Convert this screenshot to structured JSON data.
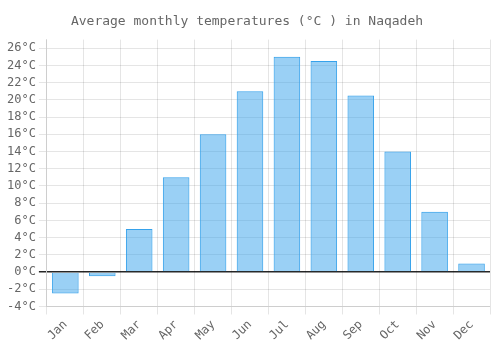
{
  "chart_data": {
    "type": "bar",
    "title": "Average monthly temperatures (°C ) in Naqadeh",
    "categories": [
      "Jan",
      "Feb",
      "Mar",
      "Apr",
      "May",
      "Jun",
      "Jul",
      "Aug",
      "Sep",
      "Oct",
      "Nov",
      "Dec"
    ],
    "values": [
      -2.5,
      -0.5,
      5.0,
      11.0,
      16.0,
      21.0,
      25.0,
      24.5,
      20.5,
      14.0,
      7.0,
      1.0
    ],
    "ylim": [
      -4,
      27
    ],
    "yticks": [
      {
        "value": -4,
        "label": "-4°C"
      },
      {
        "value": -2,
        "label": "-2°C"
      },
      {
        "value": 0,
        "label": "0°C"
      },
      {
        "value": 2,
        "label": "2°C"
      },
      {
        "value": 4,
        "label": "4°C"
      },
      {
        "value": 6,
        "label": "6°C"
      },
      {
        "value": 8,
        "label": "8°C"
      },
      {
        "value": 10,
        "label": "10°C"
      },
      {
        "value": 12,
        "label": "12°C"
      },
      {
        "value": 14,
        "label": "14°C"
      },
      {
        "value": 16,
        "label": "16°C"
      },
      {
        "value": 18,
        "label": "18°C"
      },
      {
        "value": 20,
        "label": "20°C"
      },
      {
        "value": 22,
        "label": "22°C"
      },
      {
        "value": 24,
        "label": "24°C"
      },
      {
        "value": 26,
        "label": "26°C"
      }
    ],
    "grid": true
  }
}
